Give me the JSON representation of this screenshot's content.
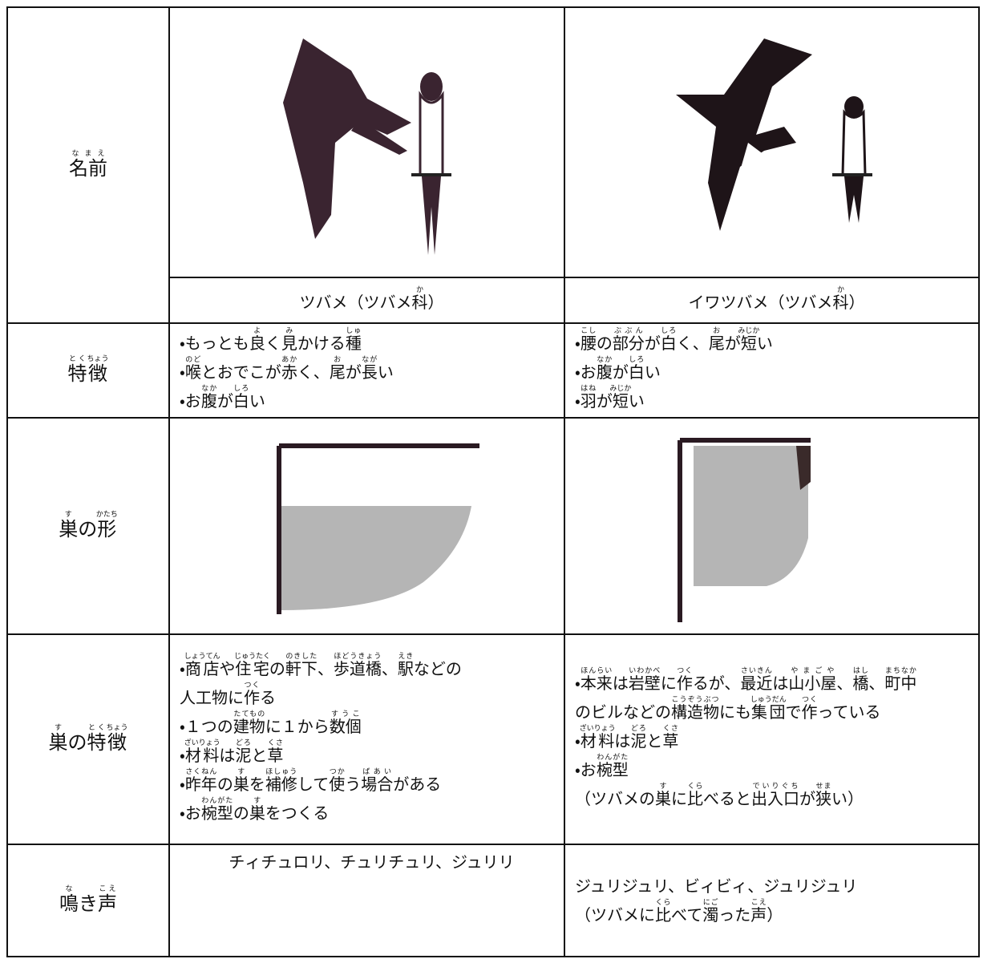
{
  "table": {
    "rows": [
      {
        "label": [
          [
            "名前",
            "なまえ"
          ]
        ],
        "cells": [
          {
            "lines": [
              [
                "ツバメ（ツバメ",
                [
                  "科",
                  "か"
                ],
                "）"
              ]
            ]
          },
          {
            "lines": [
              [
                "イワツバメ（ツバメ",
                [
                  "科",
                  "か"
                ],
                "）"
              ]
            ]
          }
        ]
      },
      {
        "label": [
          [
            "特",
            "とく"
          ],
          [
            "徴",
            "ちょう"
          ]
        ],
        "cells": [
          {
            "lines": [
              [
                "・もっとも",
                [
                  "良",
                  "よ"
                ],
                "く",
                [
                  "見",
                  "み"
                ],
                "かける",
                [
                  "種",
                  "しゅ"
                ]
              ],
              [
                "・",
                [
                  "喉",
                  "のど"
                ],
                "とおでこが",
                [
                  "赤",
                  "あか"
                ],
                "く、",
                [
                  "尾",
                  "お"
                ],
                "が",
                [
                  "長",
                  "なが"
                ],
                "い"
              ],
              [
                "・お",
                [
                  "腹",
                  "なか"
                ],
                "が",
                [
                  "白",
                  "しろ"
                ],
                "い"
              ]
            ]
          },
          {
            "lines": [
              [
                "・",
                [
                  "腰",
                  "こし"
                ],
                "の",
                [
                  "部分",
                  "ぶぶん"
                ],
                "が",
                [
                  "白",
                  "しろ"
                ],
                "く、",
                [
                  "尾",
                  "お"
                ],
                "が",
                [
                  "短",
                  "みじか"
                ],
                "い"
              ],
              [
                "・お",
                [
                  "腹",
                  "なか"
                ],
                "が",
                [
                  "白",
                  "しろ"
                ],
                "い"
              ],
              [
                "・",
                [
                  "羽",
                  "はね"
                ],
                "が",
                [
                  "短",
                  "みじか"
                ],
                "い"
              ]
            ]
          }
        ]
      },
      {
        "label": [
          [
            "巣",
            "す"
          ],
          "の",
          [
            "形",
            "かたち"
          ]
        ]
      },
      {
        "label": [
          [
            "巣",
            "す"
          ],
          "の",
          [
            "特",
            "とく"
          ],
          [
            "徴",
            "ちょう"
          ]
        ],
        "cells": [
          {
            "lines": [
              [
                "・",
                [
                  "商店",
                  "しょうてん"
                ],
                "や",
                [
                  "住宅",
                  "じゅうたく"
                ],
                "の",
                [
                  "軒下",
                  "のきした"
                ],
                "、",
                [
                  "歩道橋",
                  "ほどうきょう"
                ],
                "、",
                [
                  "駅",
                  "えき"
                ],
                "などの"
              ],
              [
                "人工物に",
                [
                  "作",
                  "つく"
                ],
                "る"
              ],
              [
                "・１つの",
                [
                  "建物",
                  "たてもの"
                ],
                "に１から",
                [
                  "数個",
                  "すうこ"
                ]
              ],
              [
                "・",
                [
                  "材料",
                  "ざいりょう"
                ],
                "は",
                [
                  "泥",
                  "どろ"
                ],
                "と",
                [
                  "草",
                  "くさ"
                ]
              ],
              [
                "・",
                [
                  "昨年",
                  "さくねん"
                ],
                "の",
                [
                  "巣",
                  "す"
                ],
                "を",
                [
                  "補修",
                  "ほしゅう"
                ],
                "して",
                [
                  "使",
                  "つか"
                ],
                "う",
                [
                  "場合",
                  "ばあい"
                ],
                "がある"
              ],
              [
                "・お",
                [
                  "椀型",
                  "わんがた"
                ],
                "の",
                [
                  "巣",
                  "す"
                ],
                "をつくる"
              ]
            ]
          },
          {
            "lines": [
              [
                "・",
                [
                  "本来",
                  "ほんらい"
                ],
                "は",
                [
                  "岩壁",
                  "いわかべ"
                ],
                "に",
                [
                  "作",
                  "つく"
                ],
                "るが、",
                [
                  "最近",
                  "さいきん"
                ],
                "は",
                [
                  "山小屋",
                  "やまごや"
                ],
                "、",
                [
                  "橋",
                  "はし"
                ],
                "、",
                [
                  "町中",
                  "まちなか"
                ]
              ],
              [
                "のビルなどの",
                [
                  "構造物",
                  "こうぞうぶつ"
                ],
                "にも",
                [
                  "集団",
                  "しゅうだん"
                ],
                "で",
                [
                  "作",
                  "つく"
                ],
                "っている"
              ],
              [
                "・",
                [
                  "材料",
                  "ざいりょう"
                ],
                "は",
                [
                  "泥",
                  "どろ"
                ],
                "と",
                [
                  "草",
                  "くさ"
                ]
              ],
              [
                "・お",
                [
                  "椀型",
                  "わんがた"
                ]
              ],
              [
                "（ツバメの",
                [
                  "巣",
                  "す"
                ],
                "に",
                [
                  "比",
                  "くら"
                ],
                "べると",
                [
                  "出入口",
                  "でいりぐち"
                ],
                "が",
                [
                  "狭",
                  "せま"
                ],
                "い）"
              ]
            ]
          }
        ]
      },
      {
        "label": [
          [
            "鳴",
            "な"
          ],
          "き",
          [
            "声",
            "こえ"
          ]
        ],
        "cells": [
          {
            "lines": [
              [
                "チィチュロリ、チュリチュリ、ジュリリ"
              ]
            ]
          },
          {
            "lines": [
              [
                "ジュリジュリ、ビィビィ、ジュリジュリ"
              ],
              [
                "（ツバメに",
                [
                  "比",
                  "くら"
                ],
                "べて",
                [
                  "濁",
                  "にご"
                ],
                "った",
                [
                  "声",
                  "こえ"
                ],
                "）"
              ]
            ]
          }
        ]
      }
    ]
  }
}
